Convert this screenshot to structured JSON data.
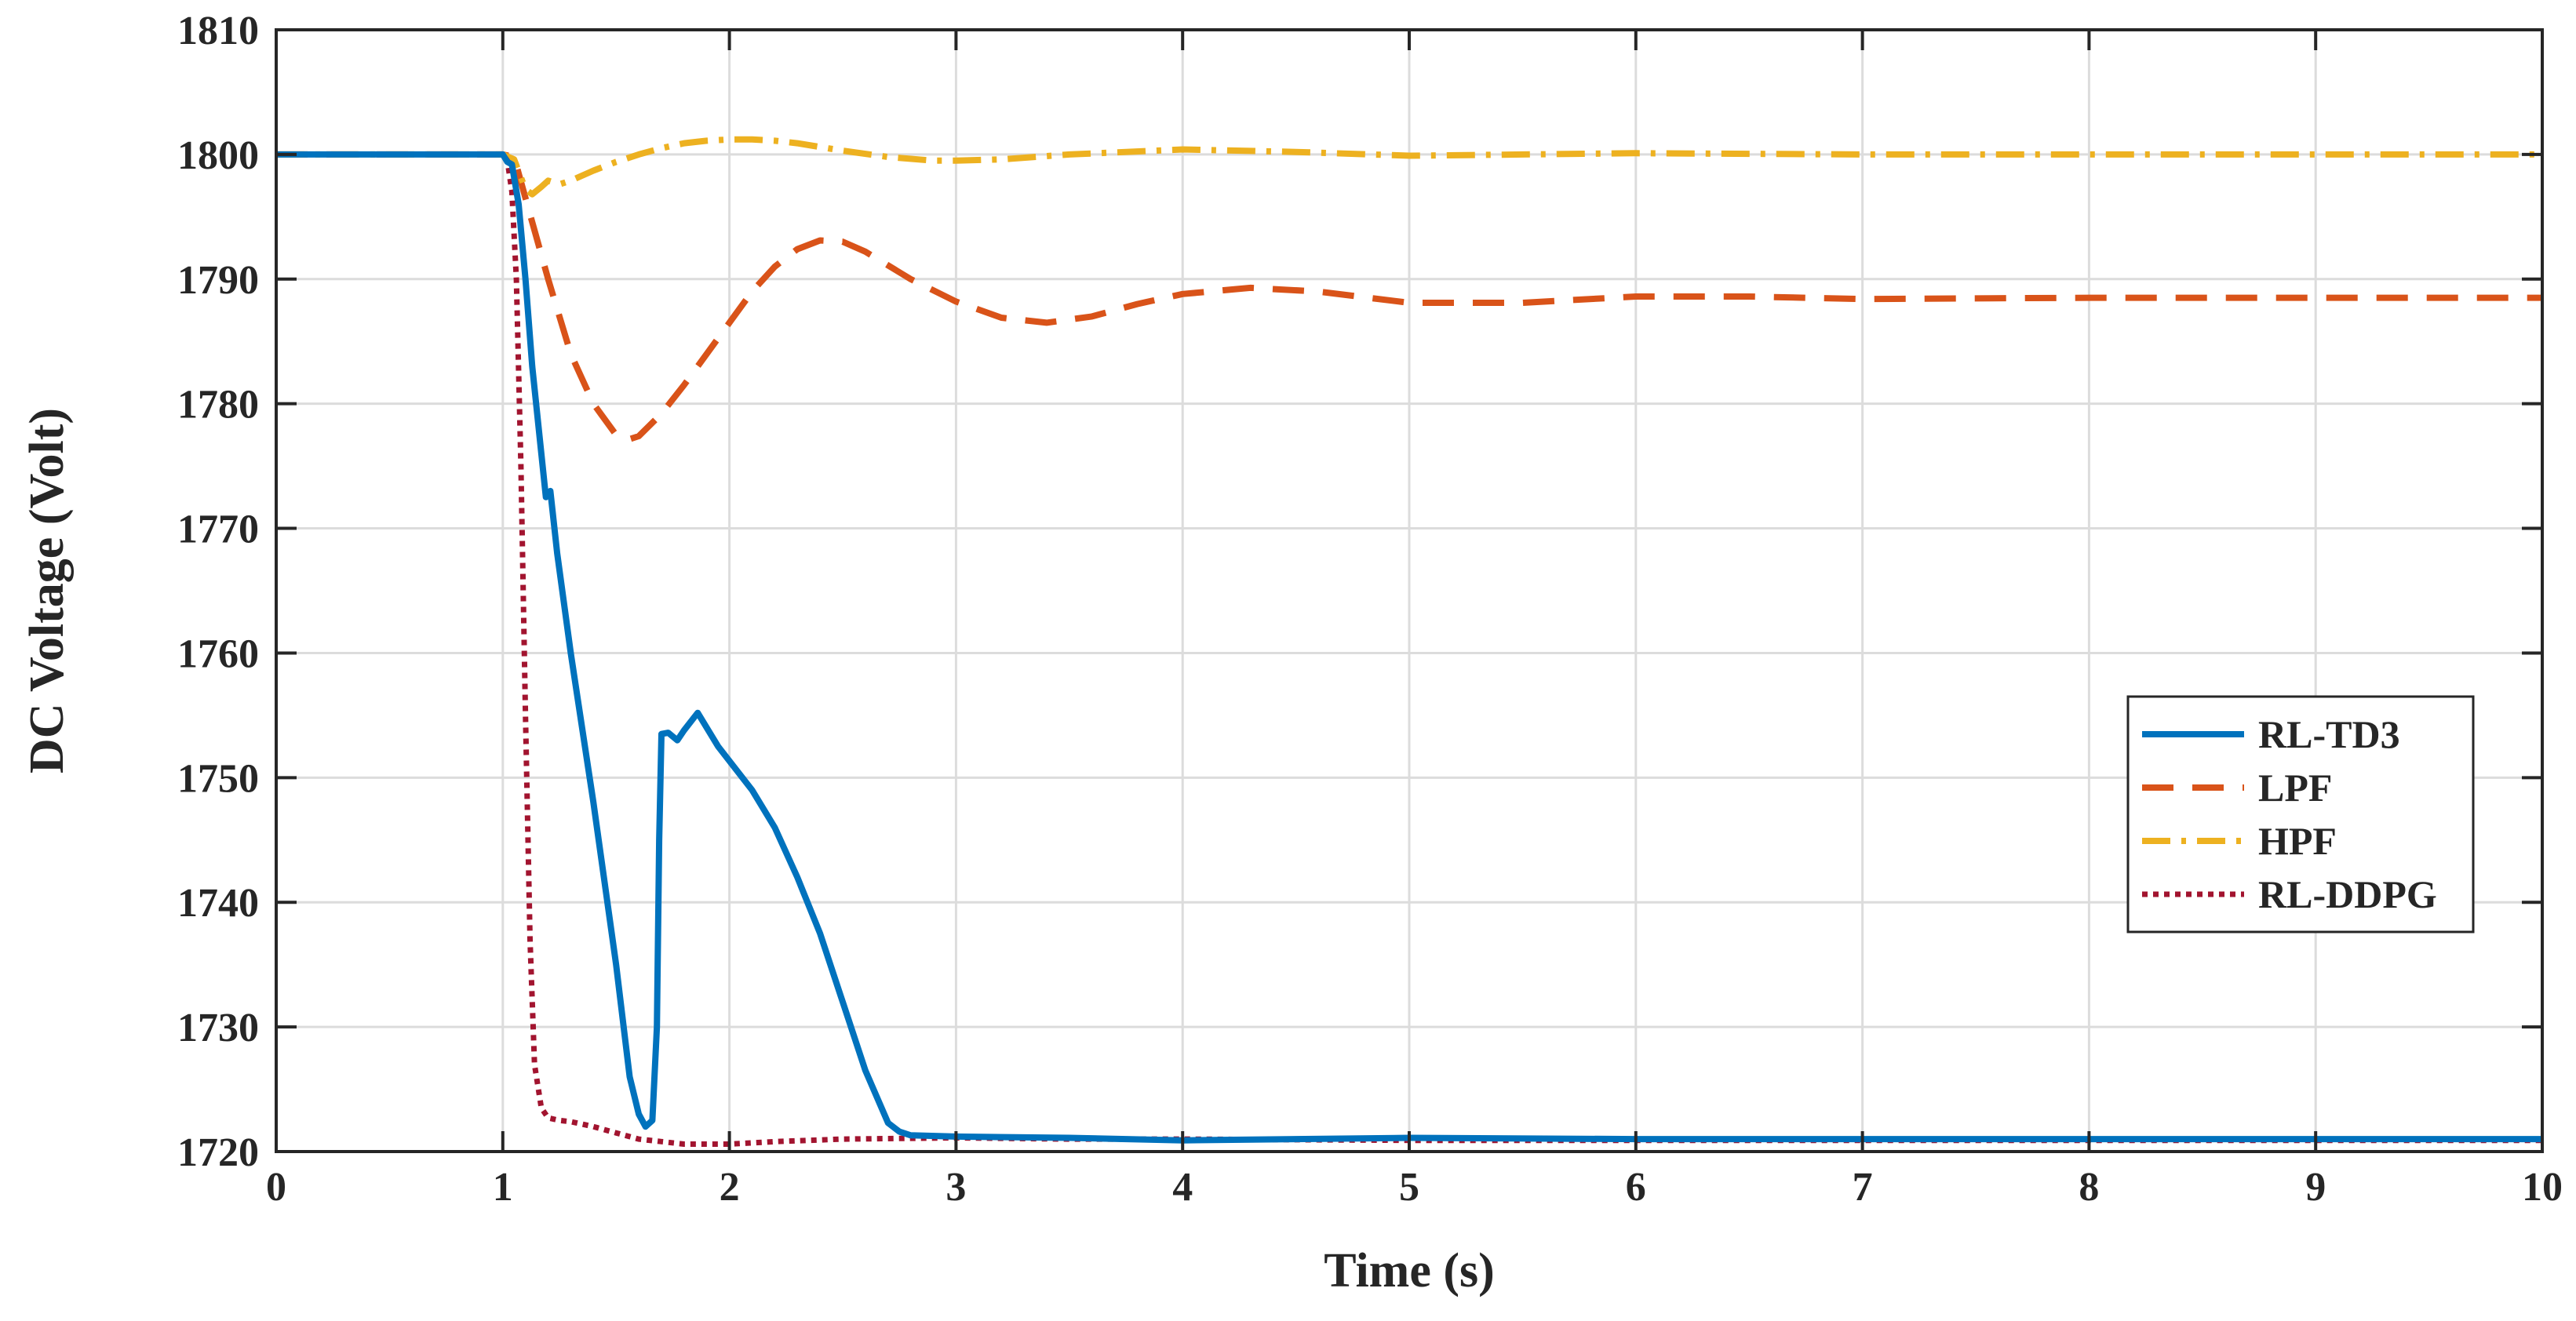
{
  "chart_data": {
    "type": "line",
    "title": "",
    "xlabel": "Time (s)",
    "ylabel": "DC Voltage (Volt)",
    "xlim": [
      0,
      10
    ],
    "ylim": [
      1720,
      1810
    ],
    "xticks": [
      0,
      1,
      2,
      3,
      4,
      5,
      6,
      7,
      8,
      9,
      10
    ],
    "yticks": [
      1720,
      1730,
      1740,
      1750,
      1760,
      1770,
      1780,
      1790,
      1800,
      1810
    ],
    "grid": true,
    "legend_position": "right",
    "series": [
      {
        "name": "RL-TD3",
        "color": "#0072BD",
        "style": "solid",
        "points": [
          [
            0,
            1800
          ],
          [
            1.0,
            1800
          ],
          [
            1.02,
            1799.4
          ],
          [
            1.04,
            1799.2
          ],
          [
            1.07,
            1796
          ],
          [
            1.1,
            1790
          ],
          [
            1.13,
            1783
          ],
          [
            1.17,
            1776
          ],
          [
            1.19,
            1772.5
          ],
          [
            1.21,
            1773
          ],
          [
            1.24,
            1768
          ],
          [
            1.3,
            1760
          ],
          [
            1.4,
            1748
          ],
          [
            1.5,
            1735
          ],
          [
            1.56,
            1726
          ],
          [
            1.6,
            1723
          ],
          [
            1.63,
            1722
          ],
          [
            1.66,
            1722.5
          ],
          [
            1.68,
            1730
          ],
          [
            1.69,
            1745
          ],
          [
            1.7,
            1753.5
          ],
          [
            1.73,
            1753.6
          ],
          [
            1.77,
            1753.0
          ],
          [
            1.8,
            1753.8
          ],
          [
            1.86,
            1755.2
          ],
          [
            1.95,
            1752.5
          ],
          [
            2.1,
            1749
          ],
          [
            2.2,
            1746
          ],
          [
            2.3,
            1742
          ],
          [
            2.4,
            1737.5
          ],
          [
            2.5,
            1732
          ],
          [
            2.6,
            1726.5
          ],
          [
            2.7,
            1722.3
          ],
          [
            2.75,
            1721.6
          ],
          [
            2.8,
            1721.3
          ],
          [
            3.0,
            1721.2
          ],
          [
            3.5,
            1721.1
          ],
          [
            4.0,
            1720.9
          ],
          [
            5.0,
            1721.1
          ],
          [
            6.0,
            1721.0
          ],
          [
            7.0,
            1721.0
          ],
          [
            8.0,
            1721.0
          ],
          [
            9.0,
            1721.0
          ],
          [
            10.0,
            1721.0
          ]
        ]
      },
      {
        "name": "LPF",
        "color": "#D95319",
        "style": "dashed",
        "points": [
          [
            0,
            1800
          ],
          [
            1.0,
            1800
          ],
          [
            1.05,
            1799.8
          ],
          [
            1.1,
            1796.5
          ],
          [
            1.2,
            1790
          ],
          [
            1.3,
            1784
          ],
          [
            1.4,
            1780
          ],
          [
            1.5,
            1777.5
          ],
          [
            1.55,
            1777.1
          ],
          [
            1.6,
            1777.4
          ],
          [
            1.7,
            1779.2
          ],
          [
            1.8,
            1781.5
          ],
          [
            1.9,
            1784
          ],
          [
            2.0,
            1786.5
          ],
          [
            2.1,
            1789
          ],
          [
            2.2,
            1791
          ],
          [
            2.3,
            1792.4
          ],
          [
            2.4,
            1793.1
          ],
          [
            2.5,
            1793.0
          ],
          [
            2.6,
            1792.2
          ],
          [
            2.8,
            1790
          ],
          [
            3.0,
            1788.2
          ],
          [
            3.2,
            1786.9
          ],
          [
            3.4,
            1786.5
          ],
          [
            3.6,
            1787
          ],
          [
            3.8,
            1788
          ],
          [
            4.0,
            1788.8
          ],
          [
            4.3,
            1789.3
          ],
          [
            4.6,
            1789.0
          ],
          [
            5.0,
            1788.1
          ],
          [
            5.5,
            1788.1
          ],
          [
            6.0,
            1788.6
          ],
          [
            6.5,
            1788.6
          ],
          [
            7.0,
            1788.4
          ],
          [
            8.0,
            1788.5
          ],
          [
            9.0,
            1788.5
          ],
          [
            10.0,
            1788.5
          ]
        ]
      },
      {
        "name": "HPF",
        "color": "#EDB120",
        "style": "dashdot",
        "points": [
          [
            0,
            1800
          ],
          [
            1.0,
            1800
          ],
          [
            1.05,
            1799.6
          ],
          [
            1.1,
            1797.2
          ],
          [
            1.13,
            1796.8
          ],
          [
            1.17,
            1797.4
          ],
          [
            1.2,
            1797.9
          ],
          [
            1.25,
            1797.6
          ],
          [
            1.3,
            1797.9
          ],
          [
            1.4,
            1798.7
          ],
          [
            1.5,
            1799.4
          ],
          [
            1.6,
            1800
          ],
          [
            1.7,
            1800.5
          ],
          [
            1.8,
            1800.9
          ],
          [
            1.9,
            1801.1
          ],
          [
            2.0,
            1801.2
          ],
          [
            2.1,
            1801.2
          ],
          [
            2.2,
            1801.1
          ],
          [
            2.3,
            1800.9
          ],
          [
            2.5,
            1800.3
          ],
          [
            2.7,
            1799.8
          ],
          [
            2.9,
            1799.5
          ],
          [
            3.0,
            1799.5
          ],
          [
            3.2,
            1799.6
          ],
          [
            3.5,
            1800.0
          ],
          [
            4.0,
            1800.4
          ],
          [
            4.5,
            1800.2
          ],
          [
            5.0,
            1799.9
          ],
          [
            5.5,
            1800.0
          ],
          [
            6.0,
            1800.1
          ],
          [
            7.0,
            1800.0
          ],
          [
            8.0,
            1800.0
          ],
          [
            9.0,
            1800.0
          ],
          [
            10.0,
            1800.0
          ]
        ]
      },
      {
        "name": "RL-DDPG",
        "color": "#A2142F",
        "style": "dotted",
        "points": [
          [
            0,
            1800
          ],
          [
            1.0,
            1800
          ],
          [
            1.02,
            1799.5
          ],
          [
            1.04,
            1797
          ],
          [
            1.06,
            1790
          ],
          [
            1.08,
            1775
          ],
          [
            1.1,
            1755
          ],
          [
            1.12,
            1737
          ],
          [
            1.14,
            1727
          ],
          [
            1.17,
            1723.5
          ],
          [
            1.2,
            1722.7
          ],
          [
            1.25,
            1722.5
          ],
          [
            1.3,
            1722.4
          ],
          [
            1.35,
            1722.2
          ],
          [
            1.4,
            1722.0
          ],
          [
            1.5,
            1721.5
          ],
          [
            1.6,
            1721.0
          ],
          [
            1.7,
            1720.8
          ],
          [
            1.8,
            1720.6
          ],
          [
            2.0,
            1720.6
          ],
          [
            2.2,
            1720.8
          ],
          [
            2.5,
            1721.0
          ],
          [
            3.0,
            1721.1
          ],
          [
            3.5,
            1721.0
          ],
          [
            4.0,
            1721.0
          ],
          [
            5.0,
            1720.9
          ],
          [
            6.0,
            1720.9
          ],
          [
            7.0,
            1720.9
          ],
          [
            8.0,
            1720.9
          ],
          [
            9.0,
            1720.9
          ],
          [
            10.0,
            1720.9
          ]
        ]
      }
    ]
  }
}
